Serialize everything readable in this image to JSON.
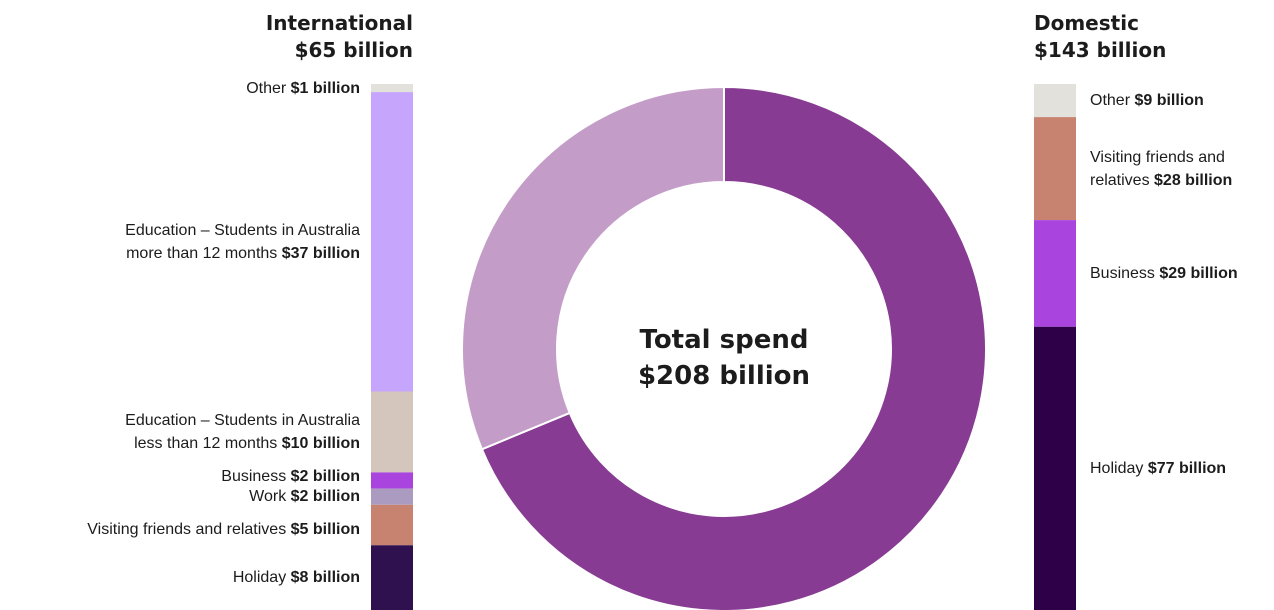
{
  "chart_data": {
    "type": "pie",
    "center": {
      "line1": "Total spend",
      "line2": "$208 billion"
    },
    "donut": {
      "slices": [
        {
          "name": "Domestic",
          "value": 143,
          "color": "#873b92"
        },
        {
          "name": "International",
          "value": 65,
          "color": "#c49cc8"
        }
      ]
    },
    "international": {
      "title": "International",
      "total": "$65 billion",
      "segments": [
        {
          "label": "Other",
          "value_text": "$1 billion",
          "value": 1,
          "color": "#e3e1dc"
        },
        {
          "label": "Education – Students in Australia more than 12 months",
          "value_text": "$37 billion",
          "value": 37,
          "color": "#c5a6fc"
        },
        {
          "label": "Education – Students in Australia less than 12 months",
          "value_text": "$10 billion",
          "value": 10,
          "color": "#d4c5bd"
        },
        {
          "label": "Business",
          "value_text": "$2 billion",
          "value": 2,
          "color": "#a944df"
        },
        {
          "label": "Work",
          "value_text": "$2 billion",
          "value": 2,
          "color": "#ab9bc1"
        },
        {
          "label": "Visiting friends and relatives",
          "value_text": "$5 billion",
          "value": 5,
          "color": "#c7836f"
        },
        {
          "label": "Holiday",
          "value_text": "$8 billion",
          "value": 8,
          "color": "#2f1150"
        }
      ]
    },
    "domestic": {
      "title": "Domestic",
      "total": "$143 billion",
      "segments": [
        {
          "label": "Other",
          "value_text": "$9 billion",
          "value": 9,
          "color": "#e3e1dc"
        },
        {
          "label": "Visiting friends and relatives",
          "value_text": "$28 billion",
          "value": 28,
          "color": "#c7836f"
        },
        {
          "label": "Business",
          "value_text": "$29 billion",
          "value": 29,
          "color": "#a944df"
        },
        {
          "label": "Holiday",
          "value_text": "$77 billion",
          "value": 77,
          "color": "#2d0048"
        }
      ]
    }
  }
}
